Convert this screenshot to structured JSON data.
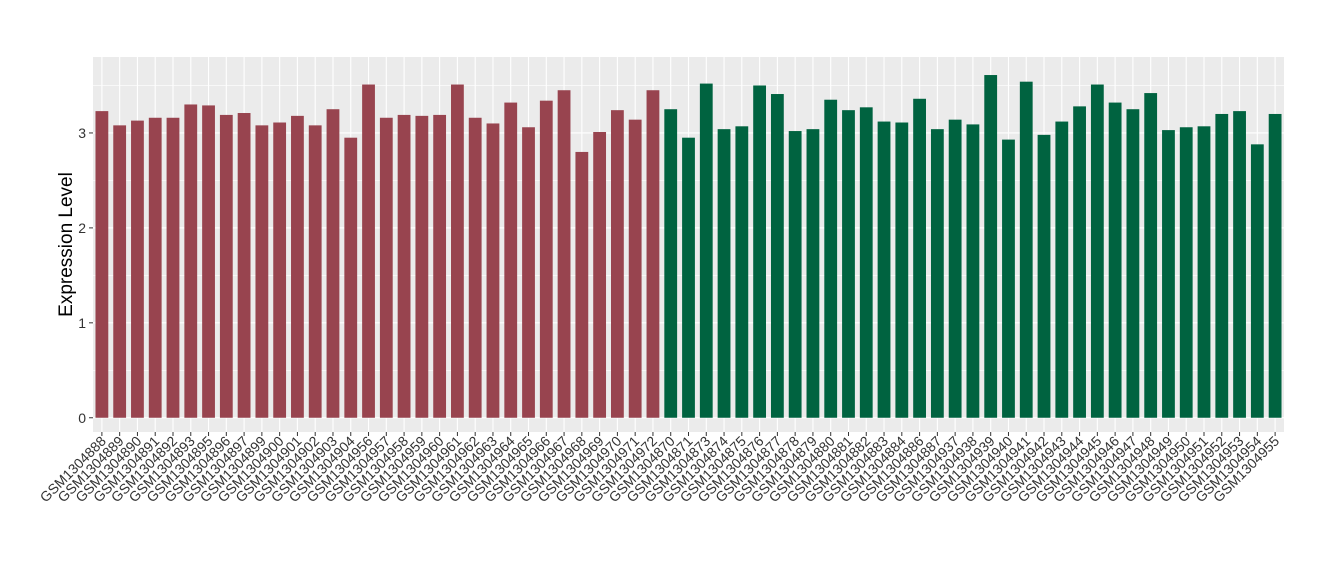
{
  "chart_data": {
    "type": "bar",
    "title": "",
    "xlabel": "",
    "ylabel": "Expression Level",
    "ylim": [
      -0.15,
      3.8
    ],
    "yticks": [
      0,
      1,
      2,
      3
    ],
    "grid": true,
    "legend": "none",
    "colors": {
      "group1": "#98444f",
      "group2": "#006340",
      "panel": "#ebebeb",
      "gridline": "#ffffff"
    },
    "categories": [
      "GSM1304888",
      "GSM1304889",
      "GSM1304890",
      "GSM1304891",
      "GSM1304892",
      "GSM1304893",
      "GSM1304895",
      "GSM1304896",
      "GSM1304897",
      "GSM1304899",
      "GSM1304900",
      "GSM1304901",
      "GSM1304902",
      "GSM1304903",
      "GSM1304904",
      "GSM1304956",
      "GSM1304957",
      "GSM1304958",
      "GSM1304959",
      "GSM1304960",
      "GSM1304961",
      "GSM1304962",
      "GSM1304963",
      "GSM1304964",
      "GSM1304965",
      "GSM1304966",
      "GSM1304967",
      "GSM1304968",
      "GSM1304969",
      "GSM1304970",
      "GSM1304971",
      "GSM1304972",
      "GSM1304870",
      "GSM1304871",
      "GSM1304873",
      "GSM1304874",
      "GSM1304875",
      "GSM1304876",
      "GSM1304877",
      "GSM1304878",
      "GSM1304879",
      "GSM1304880",
      "GSM1304881",
      "GSM1304882",
      "GSM1304883",
      "GSM1304884",
      "GSM1304886",
      "GSM1304887",
      "GSM1304937",
      "GSM1304938",
      "GSM1304939",
      "GSM1304940",
      "GSM1304941",
      "GSM1304942",
      "GSM1304943",
      "GSM1304944",
      "GSM1304945",
      "GSM1304946",
      "GSM1304947",
      "GSM1304948",
      "GSM1304949",
      "GSM1304950",
      "GSM1304951",
      "GSM1304952",
      "GSM1304953",
      "GSM1304954",
      "GSM1304955"
    ],
    "values": [
      3.23,
      3.08,
      3.13,
      3.16,
      3.16,
      3.3,
      3.29,
      3.19,
      3.21,
      3.08,
      3.11,
      3.18,
      3.08,
      3.25,
      2.95,
      3.51,
      3.16,
      3.19,
      3.18,
      3.19,
      3.51,
      3.16,
      3.1,
      3.32,
      3.06,
      3.34,
      3.45,
      2.8,
      3.01,
      3.24,
      3.14,
      3.45,
      3.25,
      2.95,
      3.52,
      3.04,
      3.07,
      3.5,
      3.41,
      3.02,
      3.04,
      3.35,
      3.24,
      3.27,
      3.12,
      3.11,
      3.36,
      3.04,
      3.14,
      3.09,
      3.61,
      2.93,
      3.54,
      2.98,
      3.12,
      3.28,
      3.51,
      3.32,
      3.25,
      3.42,
      3.03,
      3.06,
      3.07,
      3.2,
      3.23,
      2.88,
      3.2
    ],
    "group_sizes": [
      32,
      35
    ]
  }
}
